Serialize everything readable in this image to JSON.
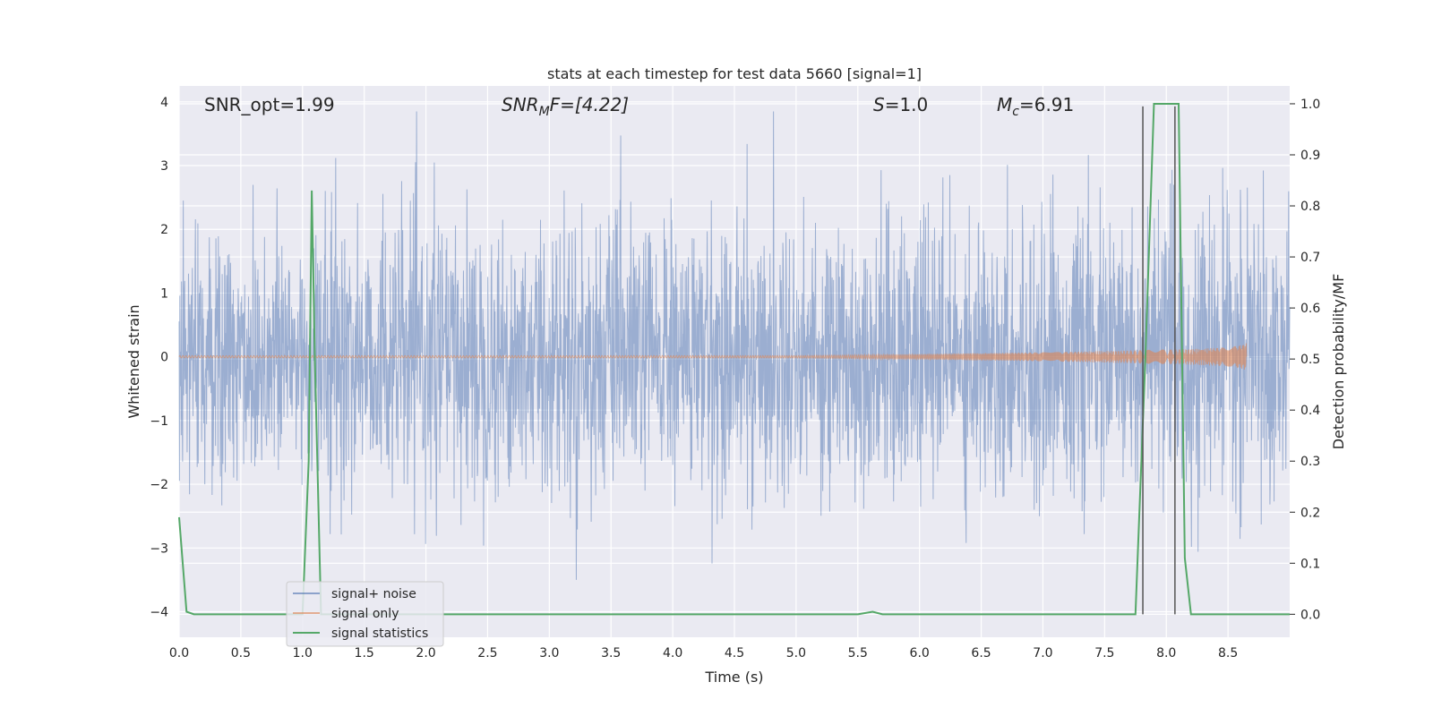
{
  "chart_data": {
    "type": "line",
    "title": "stats at each timestep for test data 5660 [signal=1]",
    "xlabel": "Time (s)",
    "ylabel_left": "Whitened strain",
    "ylabel_right": "Detection probability/MF",
    "xlim": [
      0.0,
      9.0
    ],
    "ylim_left": [
      -4.4,
      4.25
    ],
    "ylim_right": [
      -0.045,
      1.035
    ],
    "x_ticks": [
      "0.0",
      "0.5",
      "1.0",
      "1.5",
      "2.0",
      "2.5",
      "3.0",
      "3.5",
      "4.0",
      "4.5",
      "5.0",
      "5.5",
      "6.0",
      "6.5",
      "7.0",
      "7.5",
      "8.0",
      "8.5"
    ],
    "y_left_ticks": [
      "4",
      "3",
      "2",
      "1",
      "0",
      "−1",
      "−2",
      "−3",
      "−4"
    ],
    "y_right_ticks": [
      "1.0",
      "0.9",
      "0.8",
      "0.7",
      "0.6",
      "0.5",
      "0.4",
      "0.3",
      "0.2",
      "0.1",
      "0.0"
    ],
    "grid": true,
    "legend_position": "lower-left",
    "annotations": {
      "snr_opt": "SNR_opt=1.99",
      "snr_mf_base": "SNR",
      "snr_mf_sub": "M",
      "snr_mf_rest": "F=[4.22]",
      "s_base": "S",
      "s_rest": "=1.0",
      "mc_base": "M",
      "mc_sub": "c",
      "mc_rest": "=6.91"
    },
    "series": [
      {
        "name": "signal+ noise",
        "color": "#4c72b0",
        "axis": "left",
        "description_values": "whitened noisy strain, approx. unit variance, range about -3.5 to 3.8"
      },
      {
        "name": "signal only",
        "color": "#dd8452",
        "axis": "left",
        "chirp": {
          "start": 0.0,
          "end": 8.65,
          "max_amplitude": 0.25
        }
      },
      {
        "name": "signal statistics",
        "color": "#55a868",
        "axis": "right",
        "x": [
          0.0,
          0.06,
          0.12,
          0.5,
          1.0,
          1.05,
          1.075,
          1.1,
          1.15,
          1.2,
          2.0,
          3.0,
          4.0,
          5.0,
          5.5,
          5.62,
          5.7,
          6.0,
          7.0,
          7.75,
          7.83,
          7.9,
          8.0,
          8.1,
          8.15,
          8.2,
          8.5,
          9.0
        ],
        "y": [
          0.19,
          0.005,
          0.0,
          0.0,
          0.0,
          0.3,
          0.83,
          0.5,
          0.0,
          0.0,
          0.0,
          0.0,
          0.0,
          0.0,
          0.0,
          0.005,
          0.0,
          0.0,
          0.0,
          0.0,
          0.5,
          1.0,
          1.0,
          1.0,
          0.11,
          0.0,
          0.0,
          0.0
        ]
      }
    ],
    "vertical_lines": [
      {
        "x": 7.81,
        "color": "#555555",
        "y_from": 0.0,
        "y_to": 0.995
      },
      {
        "x": 8.07,
        "color": "#555555",
        "y_from": 0.0,
        "y_to": 0.995
      }
    ]
  }
}
